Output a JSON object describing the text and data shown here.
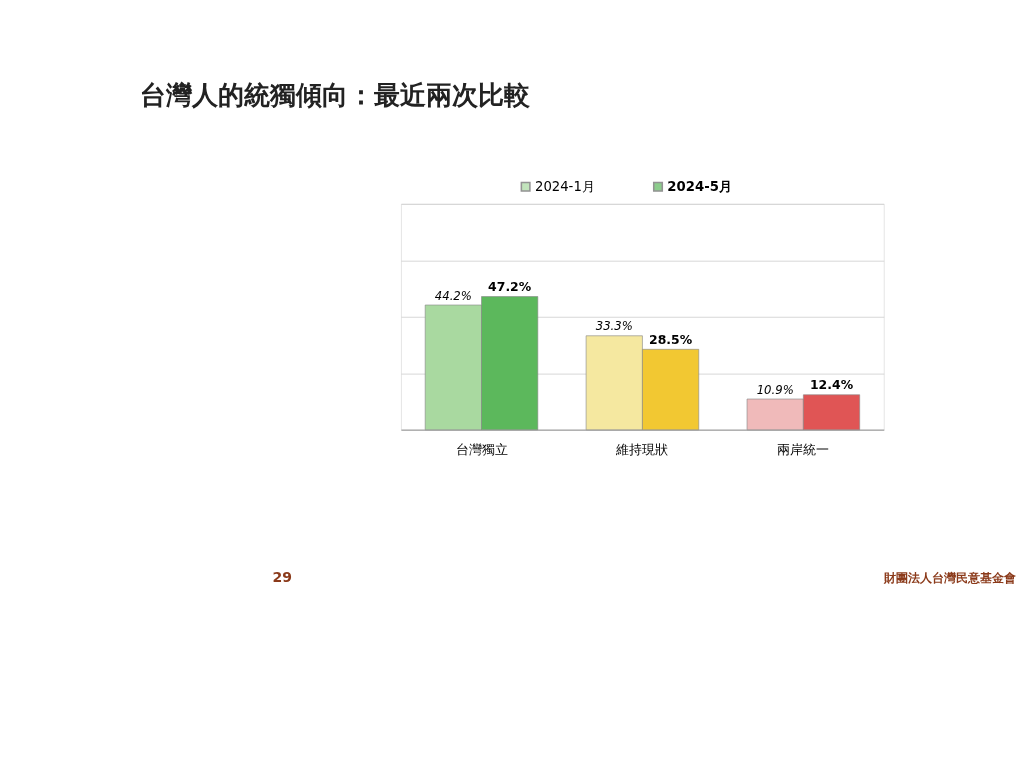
{
  "chart_data": {
    "type": "bar",
    "title": "台灣人的統獨傾向：最近兩次比較",
    "categories": [
      "台灣獨立",
      "維持現狀",
      "兩岸統一"
    ],
    "series": [
      {
        "name": "2024-1月",
        "color": "#a9d9a0",
        "colors": [
          "#a9d9a0",
          "#f5e8a0",
          "#f0baba"
        ],
        "values": [
          44.2,
          33.3,
          10.9
        ],
        "value_labels": [
          "44.2%",
          "33.3%",
          "10.9%"
        ]
      },
      {
        "name": "2024-5月",
        "color": "#5cb85c",
        "colors": [
          "#5cb85c",
          "#f2c832",
          "#e05555"
        ],
        "values": [
          47.2,
          28.5,
          12.4
        ],
        "value_labels": [
          "47.2%",
          "28.5%",
          "12.4%"
        ]
      }
    ],
    "ylim": [
      0,
      80
    ],
    "yticks": [
      {
        "value": 0,
        "label": null
      },
      {
        "value": 20,
        "label": null
      },
      {
        "value": 40,
        "label": null
      },
      {
        "value": 60,
        "label": null
      },
      {
        "value": 80,
        "label": null
      }
    ],
    "tick_labels": "x",
    "grid": "y",
    "legend": "top",
    "annotations": [
      "29",
      "財團法人台灣民意基金會"
    ]
  }
}
